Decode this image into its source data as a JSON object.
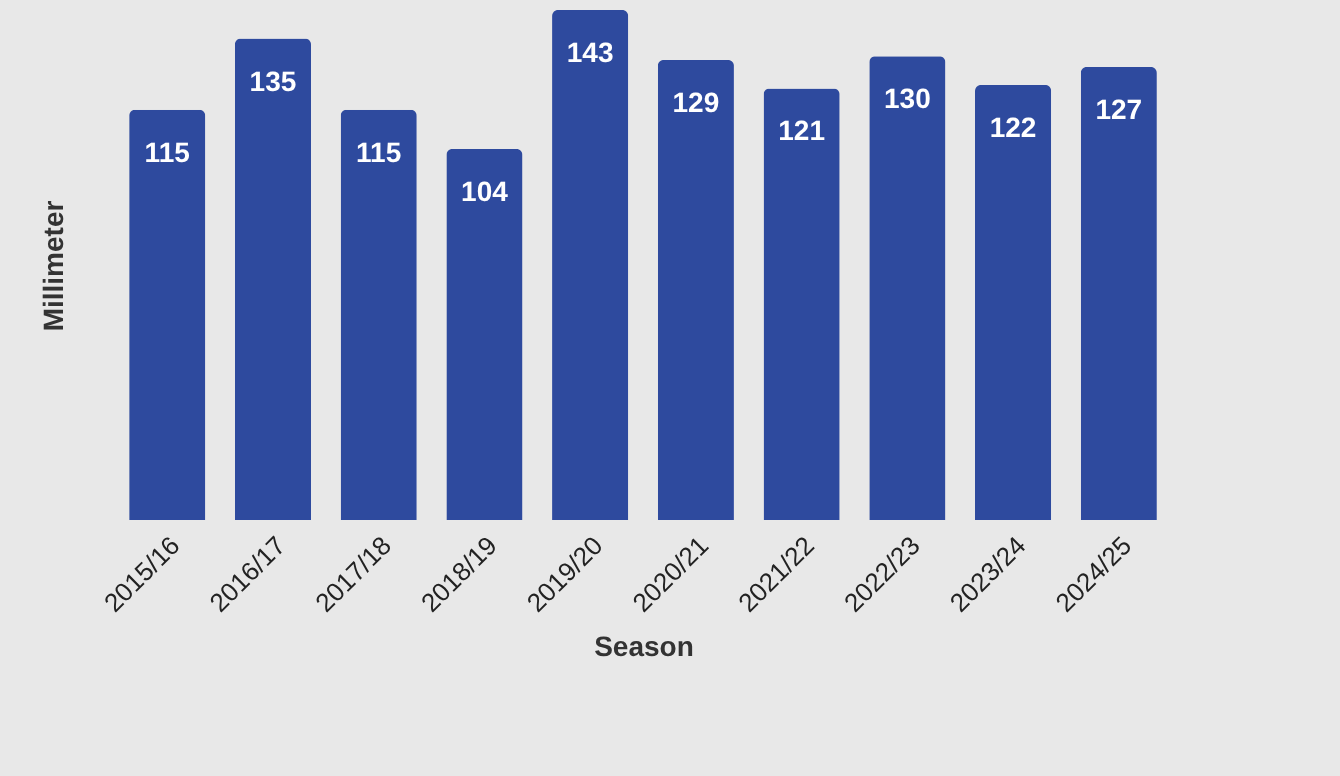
{
  "chart_data": {
    "type": "bar",
    "xlabel": "Season",
    "ylabel": "Millimeter",
    "categories": [
      "2015/16",
      "2016/17",
      "2017/18",
      "2018/19",
      "2019/20",
      "2020/21",
      "2021/22",
      "2022/23",
      "2023/24",
      "2024/25"
    ],
    "values": [
      115,
      135,
      115,
      104,
      143,
      129,
      121,
      130,
      122,
      127
    ],
    "color": "#2e4a9e",
    "data_labels": true,
    "tick_labels": "x",
    "grid": false
  }
}
